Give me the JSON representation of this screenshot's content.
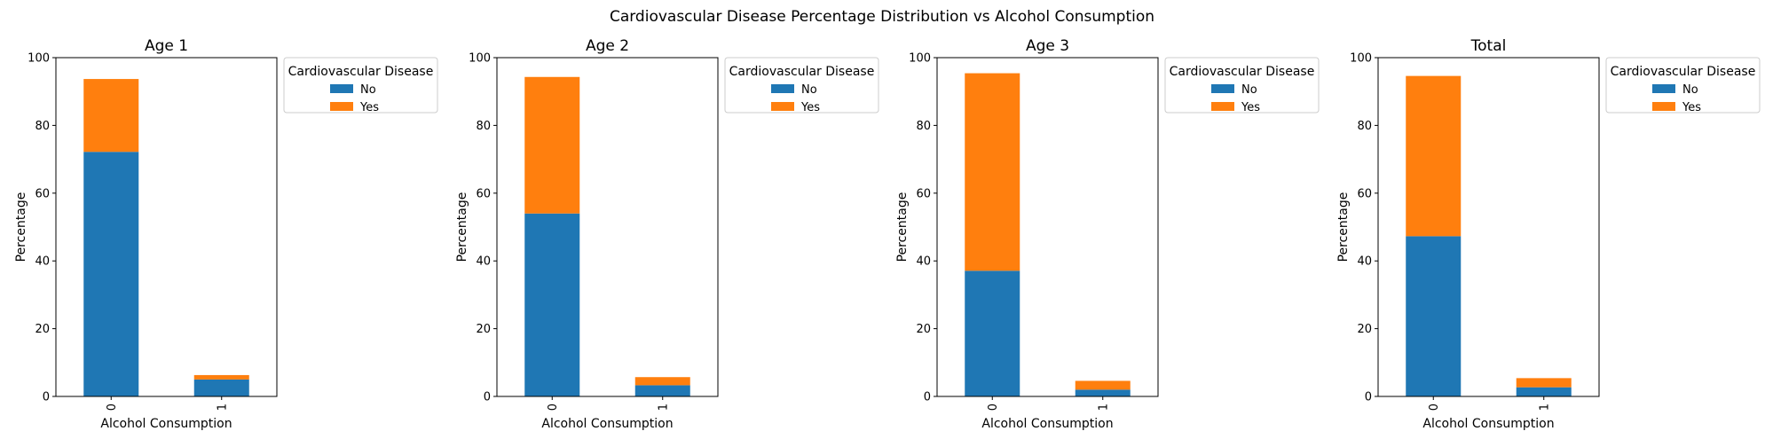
{
  "figure": {
    "suptitle": "Cardiovascular Disease Percentage Distribution vs Alcohol Consumption"
  },
  "chart_data": [
    {
      "type": "bar",
      "stacked": true,
      "title": "Age 1",
      "xlabel": "Alcohol Consumption",
      "ylabel": "Percentage",
      "categories": [
        "0",
        "1"
      ],
      "ylim": [
        0,
        100
      ],
      "yticks": [
        0,
        20,
        40,
        60,
        80,
        100
      ],
      "legend": {
        "title": "Cardiovascular Disease",
        "placement": "outside-upper-right"
      },
      "series": [
        {
          "name": "No",
          "color": "#1f77b4",
          "values": [
            72.2,
            5.0
          ]
        },
        {
          "name": "Yes",
          "color": "#ff7f0e",
          "values": [
            21.5,
            1.3
          ]
        }
      ]
    },
    {
      "type": "bar",
      "stacked": true,
      "title": "Age 2",
      "xlabel": "Alcohol Consumption",
      "ylabel": "Percentage",
      "categories": [
        "0",
        "1"
      ],
      "ylim": [
        0,
        100
      ],
      "yticks": [
        0,
        20,
        40,
        60,
        80,
        100
      ],
      "legend": {
        "title": "Cardiovascular Disease",
        "placement": "outside-upper-right"
      },
      "series": [
        {
          "name": "No",
          "color": "#1f77b4",
          "values": [
            54.0,
            3.3
          ]
        },
        {
          "name": "Yes",
          "color": "#ff7f0e",
          "values": [
            40.3,
            2.4
          ]
        }
      ]
    },
    {
      "type": "bar",
      "stacked": true,
      "title": "Age 3",
      "xlabel": "Alcohol Consumption",
      "ylabel": "Percentage",
      "categories": [
        "0",
        "1"
      ],
      "ylim": [
        0,
        100
      ],
      "yticks": [
        0,
        20,
        40,
        60,
        80,
        100
      ],
      "legend": {
        "title": "Cardiovascular Disease",
        "placement": "outside-upper-right"
      },
      "series": [
        {
          "name": "No",
          "color": "#1f77b4",
          "values": [
            37.1,
            2.0
          ]
        },
        {
          "name": "Yes",
          "color": "#ff7f0e",
          "values": [
            58.3,
            2.6
          ]
        }
      ]
    },
    {
      "type": "bar",
      "stacked": true,
      "title": "Total",
      "xlabel": "Alcohol Consumption",
      "ylabel": "Percentage",
      "categories": [
        "0",
        "1"
      ],
      "ylim": [
        0,
        100
      ],
      "yticks": [
        0,
        20,
        40,
        60,
        80,
        100
      ],
      "legend": {
        "title": "Cardiovascular Disease",
        "placement": "outside-upper-right"
      },
      "series": [
        {
          "name": "No",
          "color": "#1f77b4",
          "values": [
            47.3,
            2.7
          ]
        },
        {
          "name": "Yes",
          "color": "#ff7f0e",
          "values": [
            47.3,
            2.7
          ]
        }
      ]
    }
  ]
}
